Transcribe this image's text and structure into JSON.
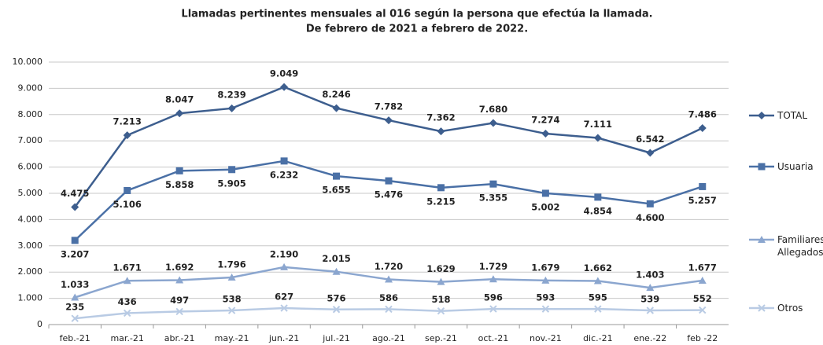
{
  "chart_data": {
    "type": "line",
    "title": "Llamadas pertinentes mensuales al 016 según la persona que efectúa la llamada.",
    "subtitle": "De febrero de 2021 a febrero de 2022.",
    "categories": [
      "feb.-21",
      "mar.-21",
      "abr.-21",
      "may.-21",
      "jun.-21",
      "jul.-21",
      "ago.-21",
      "sep.-21",
      "oct.-21",
      "nov.-21",
      "dic.-21",
      "ene.-22",
      "feb -22"
    ],
    "series": [
      {
        "name": "TOTAL",
        "color": "#3d5e8e",
        "marker": "diamond",
        "values": [
          4475,
          7213,
          8047,
          8239,
          9049,
          8246,
          7782,
          7362,
          7680,
          7274,
          7111,
          6542,
          7486
        ],
        "value_labels": [
          "4.475",
          "7.213",
          "8.047",
          "8.239",
          "9.049",
          "8.246",
          "7.782",
          "7.362",
          "7.680",
          "7.274",
          "7.111",
          "6.542",
          "7.486"
        ]
      },
      {
        "name": "Usuaria",
        "color": "#4a70a6",
        "marker": "square",
        "values": [
          3207,
          5106,
          5858,
          5905,
          6232,
          5655,
          5476,
          5215,
          5355,
          5002,
          4854,
          4600,
          5257
        ],
        "value_labels": [
          "3.207",
          "5.106",
          "5.858",
          "5.905",
          "6.232",
          "5.655",
          "5.476",
          "5.215",
          "5.355",
          "5.002",
          "4.854",
          "4.600",
          "5.257"
        ]
      },
      {
        "name": "Familiares/ Allegados",
        "color": "#8ba6cf",
        "marker": "triangle",
        "values": [
          1033,
          1671,
          1692,
          1796,
          2190,
          2015,
          1720,
          1629,
          1729,
          1679,
          1662,
          1403,
          1677
        ],
        "value_labels": [
          "1.033",
          "1.671",
          "1.692",
          "1.796",
          "2.190",
          "2.015",
          "1.720",
          "1.629",
          "1.729",
          "1.679",
          "1.662",
          "1.403",
          "1.677"
        ]
      },
      {
        "name": "Otros",
        "color": "#b9cbe4",
        "marker": "x",
        "values": [
          235,
          436,
          497,
          538,
          627,
          576,
          586,
          518,
          596,
          593,
          595,
          539,
          552
        ]
      }
    ],
    "ylim": [
      0,
      10000
    ],
    "yticks": [
      0,
      {
        "value": 1000,
        "label": "1.000"
      },
      {
        "value": 2000,
        "label": "2.000"
      },
      {
        "value": 3000,
        "label": "3.000"
      },
      {
        "value": 4000,
        "label": "4.000"
      },
      {
        "value": 5000,
        "label": "5.000"
      },
      {
        "value": 6000,
        "label": "6.000"
      },
      {
        "value": 7000,
        "label": "7.000"
      },
      {
        "value": 8000,
        "label": "8.000"
      },
      {
        "value": 9000,
        "label": "9.000"
      },
      {
        "value": 10000,
        "label": "10.000"
      }
    ],
    "grid": true,
    "legend": "right"
  }
}
